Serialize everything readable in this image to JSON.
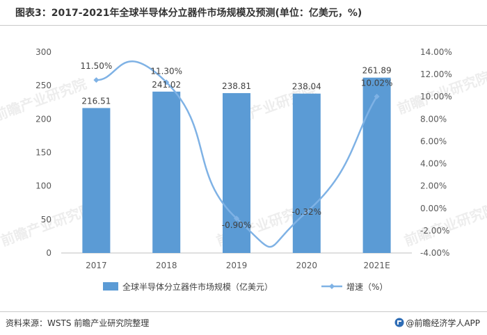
{
  "header": {
    "title": "图表3：2017-2021年全球半导体分立器件市场规模及预测(单位：亿美元，%)"
  },
  "chart_data": {
    "type": "bar",
    "categories": [
      "2017",
      "2018",
      "2019",
      "2020",
      "2021E"
    ],
    "series": [
      {
        "name": "全球半导体分立器件市场规模（亿美元）",
        "type": "bar",
        "axis": "left",
        "values": [
          216.51,
          241.02,
          238.81,
          238.04,
          261.89
        ],
        "labels": [
          "216.51",
          "241.02",
          "238.81",
          "238.04",
          "261.89"
        ],
        "color": "#5b9bd5"
      },
      {
        "name": "增速（%）",
        "type": "line",
        "axis": "right",
        "smooth": true,
        "values": [
          11.5,
          11.3,
          -0.9,
          -0.32,
          10.02
        ],
        "labels": [
          "11.50%",
          "11.30%",
          "-0.90%",
          "-0.32%",
          "10.02%"
        ],
        "color": "#7fb2e5"
      }
    ],
    "y_left": {
      "min": 0,
      "max": 300,
      "ticks": [
        "0",
        "50",
        "100",
        "150",
        "200",
        "250",
        "300"
      ]
    },
    "y_right": {
      "min": -4,
      "max": 14,
      "ticks": [
        "-4.00%",
        "-2.00%",
        "0.00%",
        "2.00%",
        "4.00%",
        "6.00%",
        "8.00%",
        "10.00%",
        "12.00%",
        "14.00%"
      ]
    },
    "grid": false,
    "legend_position": "bottom"
  },
  "watermark": {
    "text": "前瞻产业研究院"
  },
  "footer": {
    "source": "资料来源：WSTS 前瞻产业研究院整理",
    "brand": "@前瞻经济学人APP"
  }
}
